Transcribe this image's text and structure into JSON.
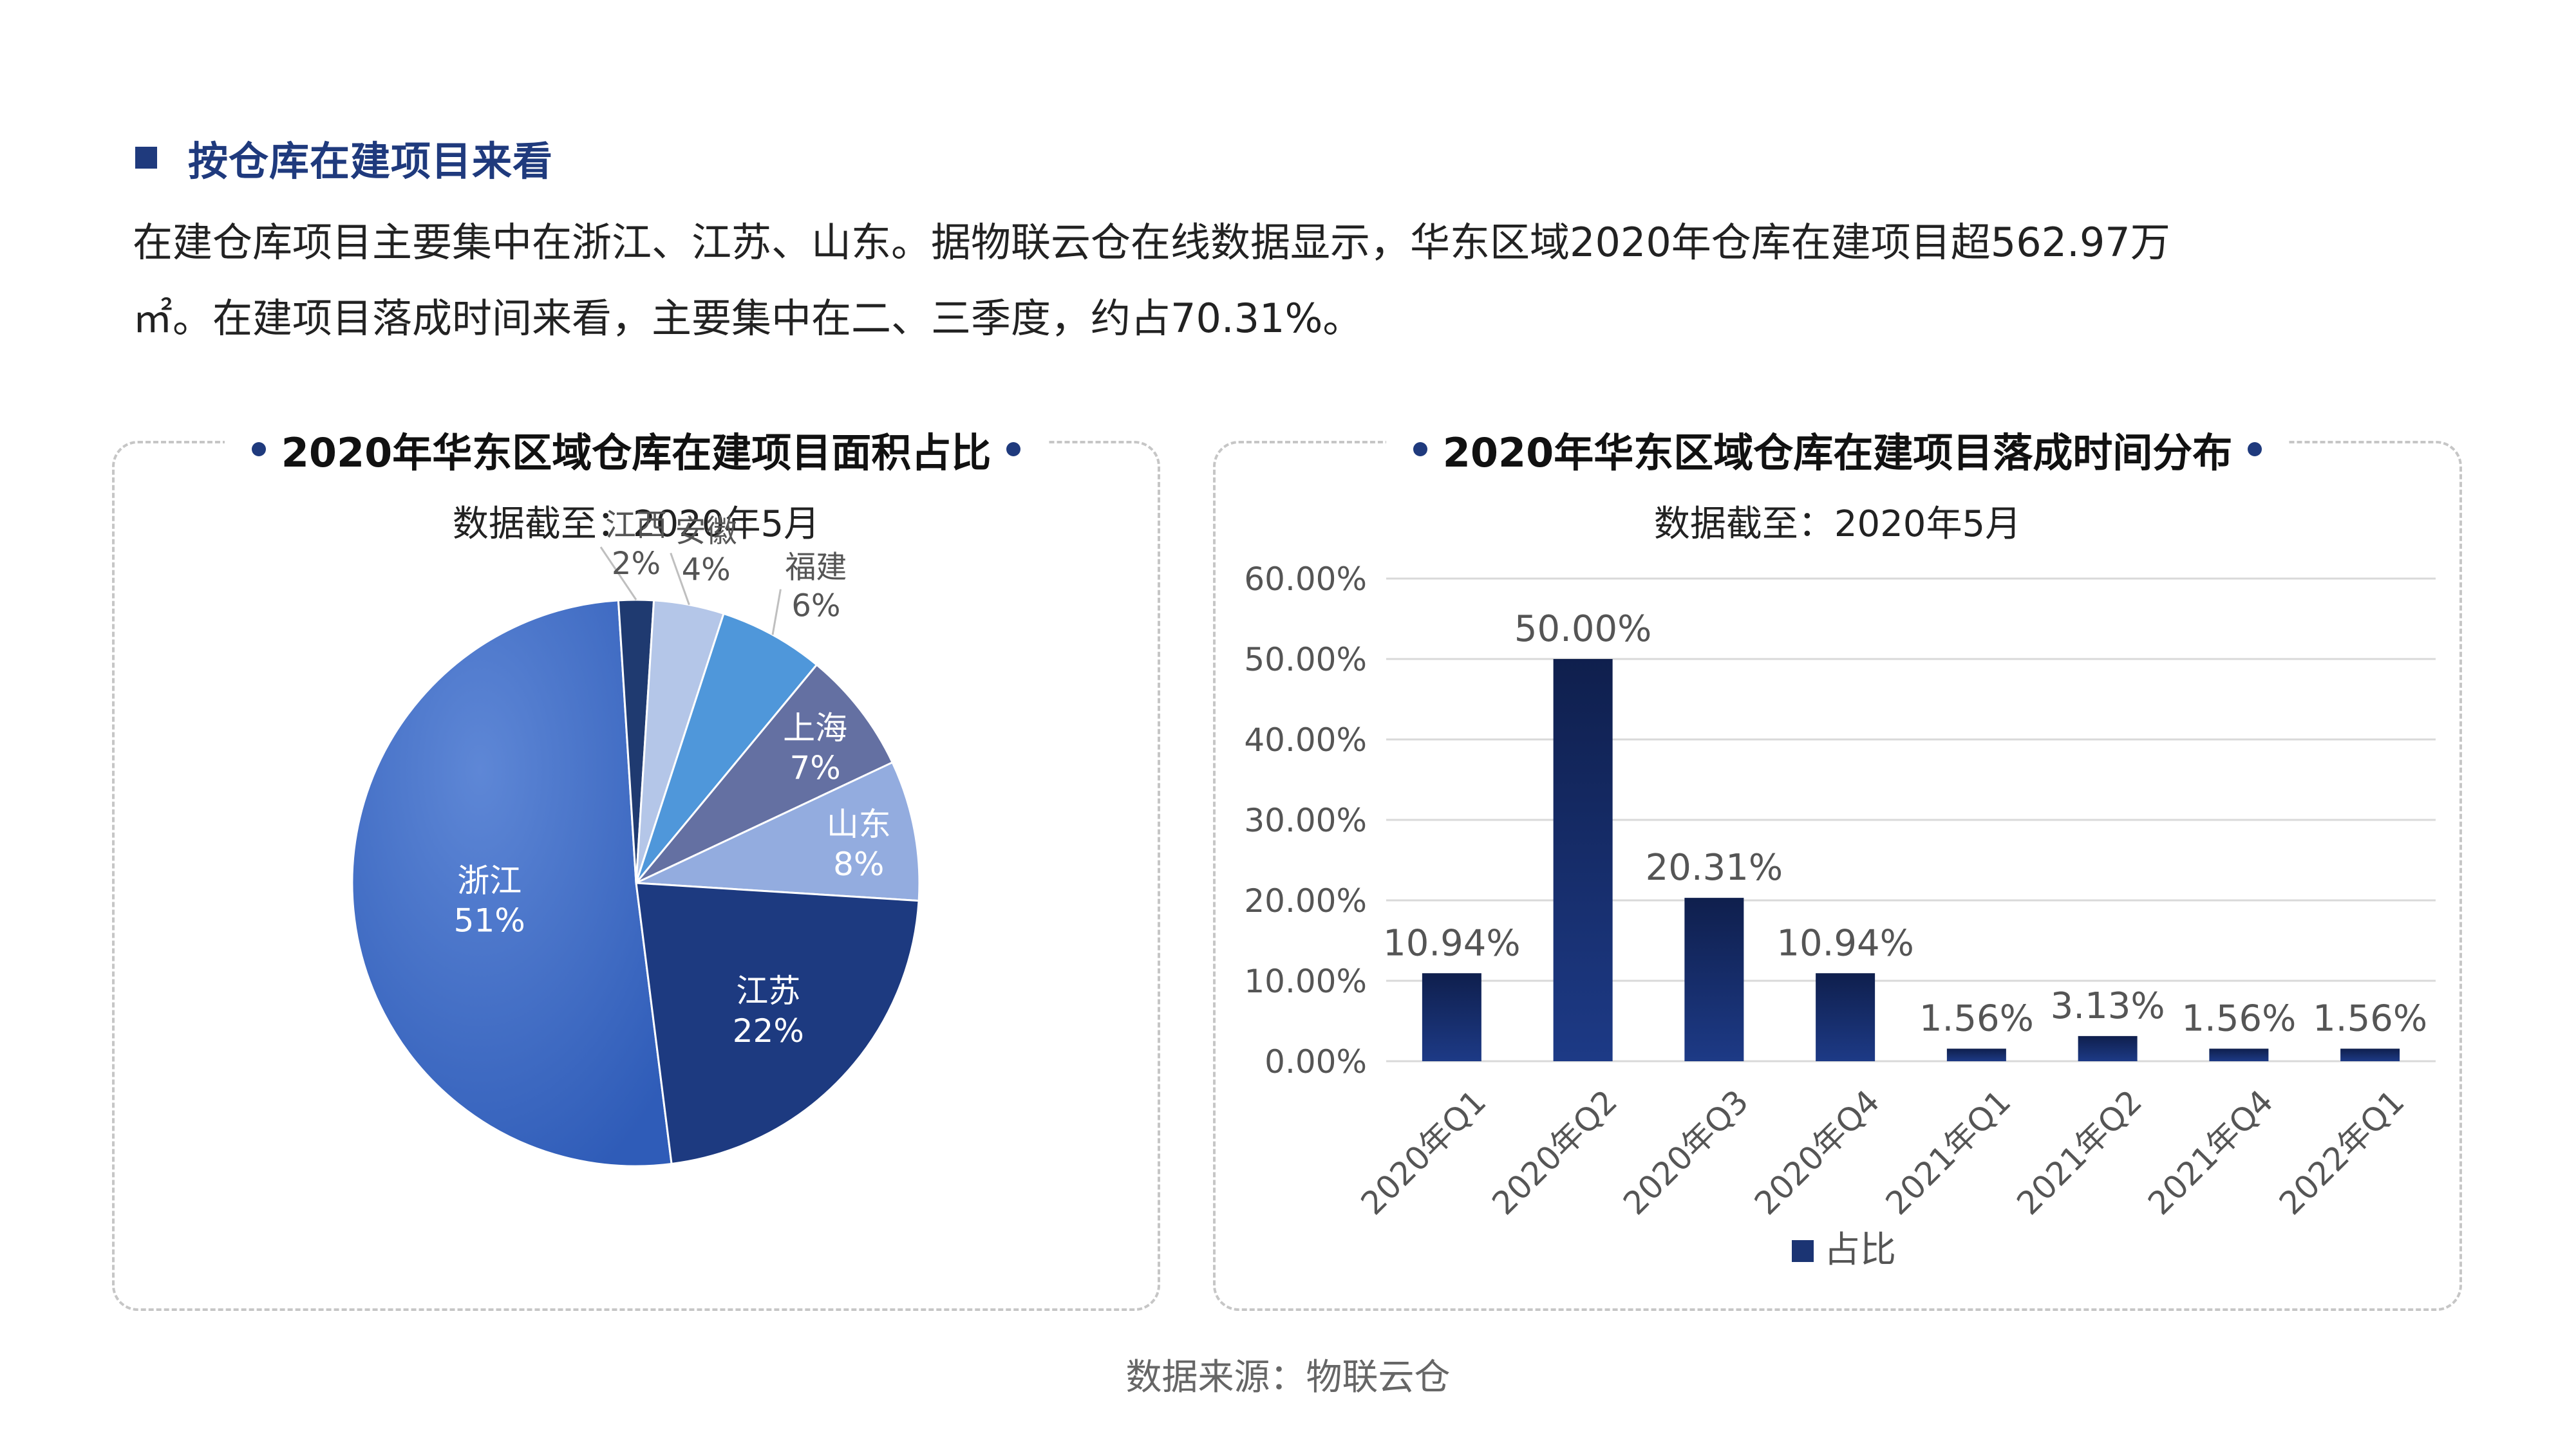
{
  "heading": {
    "text": "按仓库在建项目来看"
  },
  "paragraph": {
    "line1": "在建仓库项目主要集中在浙江、江苏、山东。据物联云仓在线数据显示，华东区域2020年仓库在建项目超562.97万",
    "line2": "㎡。在建项目落成时间来看，主要集中在二、三季度，约占70.31%。"
  },
  "left_panel": {
    "title": "2020年华东区域仓库在建项目面积占比",
    "subtitle": "数据截至：2020年5月"
  },
  "right_panel": {
    "title": "2020年华东区域仓库在建项目落成时间分布",
    "subtitle": "数据截至：2020年5月"
  },
  "source": "数据来源：物联云仓",
  "chart_data": [
    {
      "type": "pie",
      "title": "2020年华东区域仓库在建项目面积占比",
      "subtitle": "数据截至：2020年5月",
      "slices": [
        {
          "label": "浙江",
          "value": 51,
          "text": "51%",
          "color": "#3f6cc4"
        },
        {
          "label": "江西",
          "value": 2,
          "text": "2%",
          "color": "#1f3a70"
        },
        {
          "label": "安徽",
          "value": 4,
          "text": "4%",
          "color": "#b4c6e8"
        },
        {
          "label": "福建",
          "value": 6,
          "text": "6%",
          "color": "#4f97da"
        },
        {
          "label": "上海",
          "value": 7,
          "text": "7%",
          "color": "#6470a2"
        },
        {
          "label": "山东",
          "value": 8,
          "text": "8%",
          "color": "#93acdf"
        },
        {
          "label": "江苏",
          "value": 22,
          "text": "22%",
          "color": "#1d3a80"
        }
      ]
    },
    {
      "type": "bar",
      "title": "2020年华东区域仓库在建项目落成时间分布",
      "subtitle": "数据截至：2020年5月",
      "categories": [
        "2020年Q1",
        "2020年Q2",
        "2020年Q3",
        "2020年Q4",
        "2021年Q1",
        "2021年Q2",
        "2021年Q4",
        "2022年Q1"
      ],
      "series": [
        {
          "name": "占比",
          "values": [
            10.94,
            50.0,
            20.31,
            10.94,
            1.56,
            3.13,
            1.56,
            1.56
          ],
          "labels": [
            "10.94%",
            "50.00%",
            "20.31%",
            "10.94%",
            "1.56%",
            "3.13%",
            "1.56%",
            "1.56%"
          ],
          "color": "#1b3473"
        }
      ],
      "ylim": [
        0,
        60
      ],
      "yticks": [
        "0.00%",
        "10.00%",
        "20.00%",
        "30.00%",
        "40.00%",
        "50.00%",
        "60.00%"
      ],
      "grid": true,
      "legend": "bottom"
    }
  ]
}
